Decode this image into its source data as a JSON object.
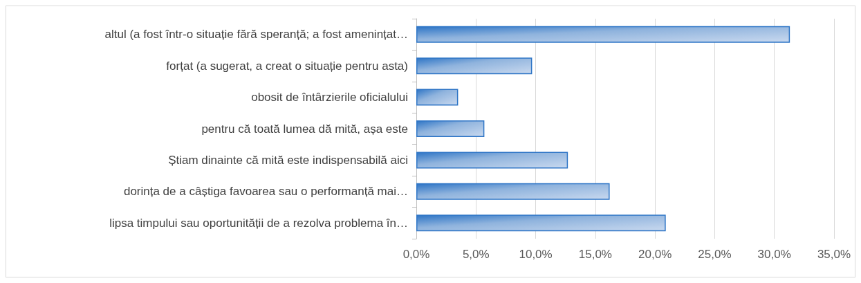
{
  "chart_data": {
    "type": "bar",
    "orientation": "horizontal",
    "categories": [
      "altul (a fost într-o situație fără speranță; a fost amenințat…",
      "forțat (a sugerat, a creat o situație pentru asta)",
      "obosit de întârzierile oficialului",
      "pentru că toată lumea dă mită, așa este",
      "Știam dinainte că mită este indispensabilă aici",
      "dorința de a câștiga favoarea sau o performanță mai…",
      "lipsa timpului sau oportunității de a rezolva problema în…"
    ],
    "values": [
      31.3,
      9.7,
      3.5,
      5.7,
      12.7,
      16.2,
      20.9
    ],
    "color": "#2e75c6",
    "xlim": [
      0,
      35
    ],
    "xticks": [
      {
        "value": 0,
        "label": "0,0%"
      },
      {
        "value": 5,
        "label": "5,0%"
      },
      {
        "value": 10,
        "label": "10,0%"
      },
      {
        "value": 15,
        "label": "15,0%"
      },
      {
        "value": 20,
        "label": "20,0%"
      },
      {
        "value": 25,
        "label": "25,0%"
      },
      {
        "value": 30,
        "label": "30,0%"
      },
      {
        "value": 35,
        "label": "35,0%"
      }
    ],
    "grid": "x"
  }
}
